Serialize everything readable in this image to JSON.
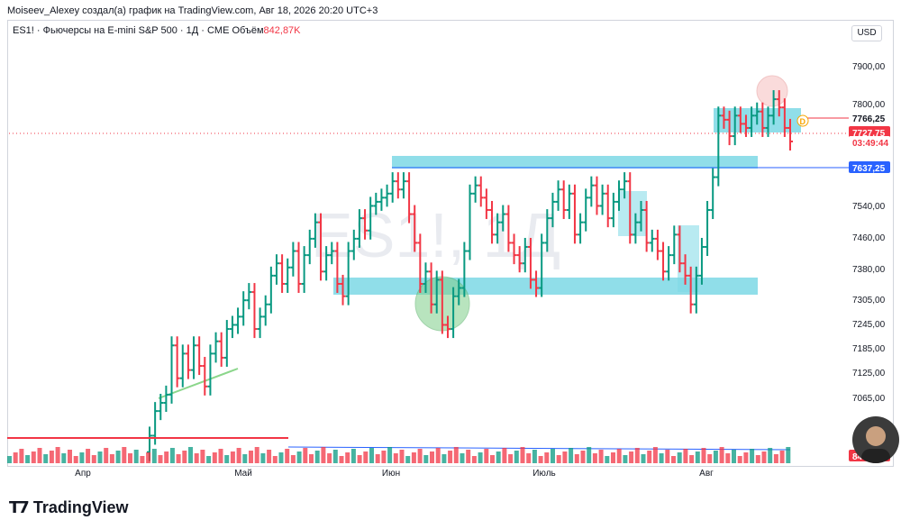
{
  "header": {
    "author_line": "Moiseev_Alexey создал(а) график на TradingView.com, Авг 18, 2026 20:20 UTC+3"
  },
  "symbol_info": {
    "text": "ES1! · Фьючерсы на E-mini S&P 500 · 1Д · CME",
    "volume_label": "Объём",
    "volume_value": "842,87K"
  },
  "currency": "USD",
  "watermark": "ES1!, 1Д",
  "price_axis": {
    "ticks": [
      "7900,00",
      "7800,00",
      "7540,00",
      "7460,00",
      "7380,00",
      "7305,00",
      "7245,00",
      "7185,00",
      "7125,00",
      "7065,00"
    ],
    "labels": [
      {
        "text": "7766,25",
        "color": "#f23645"
      },
      {
        "text": "7727,75",
        "color": "#ffffff"
      },
      {
        "text": "03:49:44",
        "color": "#f23645"
      },
      {
        "text": "7637,25",
        "color": "#2962ff"
      },
      {
        "text": "84",
        "color": "#f23645"
      }
    ]
  },
  "time_axis": [
    "Апр",
    "Май",
    "Июн",
    "Июль",
    "Авг"
  ],
  "marker_label": "D",
  "colors": {
    "up": "#089981",
    "down": "#f23645",
    "zone": "#7dd8e5",
    "line": "#2962ff"
  },
  "chart_data": {
    "type": "ohlc",
    "price_range": [
      7000,
      7940
    ],
    "closes": [
      7010,
      7070,
      7090,
      7110,
      7230,
      7150,
      7210,
      7170,
      7230,
      7180,
      7130,
      7210,
      7240,
      7200,
      7270,
      7280,
      7300,
      7340,
      7360,
      7270,
      7300,
      7330,
      7400,
      7430,
      7380,
      7420,
      7460,
      7380,
      7450,
      7490,
      7530,
      7410,
      7450,
      7460,
      7380,
      7350,
      7460,
      7490,
      7540,
      7510,
      7570,
      7580,
      7590,
      7600,
      7630,
      7610,
      7630,
      7550,
      7480,
      7380,
      7410,
      7330,
      7390,
      7280,
      7270,
      7350,
      7370,
      7460,
      7600,
      7620,
      7590,
      7560,
      7500,
      7530,
      7550,
      7480,
      7450,
      7430,
      7470,
      7390,
      7370,
      7480,
      7540,
      7580,
      7610,
      7560,
      7600,
      7500,
      7530,
      7590,
      7620,
      7570,
      7600,
      7540,
      7580,
      7610,
      7630,
      7500,
      7530,
      7560,
      7480,
      7490,
      7460,
      7410,
      7450,
      7500,
      7430,
      7400,
      7330,
      7400,
      7470,
      7560,
      7640,
      7790,
      7780,
      7740,
      7790,
      7770,
      7760,
      7790,
      7800,
      7760,
      7790,
      7830,
      7810,
      7760,
      7727
    ]
  }
}
